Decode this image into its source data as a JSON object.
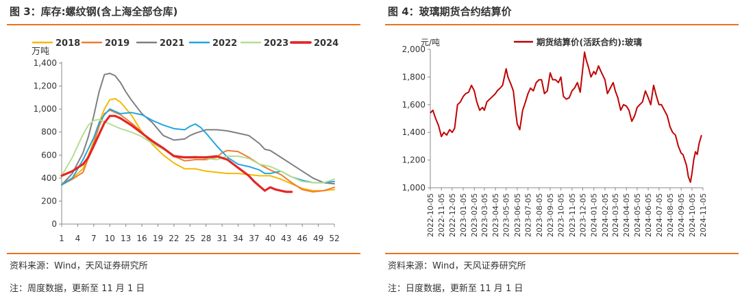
{
  "left": {
    "title": "图 3：库存:螺纹钢(含上海全部仓库)",
    "source": "资料来源：Wind，天风证券研究所",
    "note": "注：周度数据，更新至 11 月 1 日"
  },
  "right": {
    "title": "图 4：玻璃期货合约结算价",
    "source": "资料来源：Wind，天风证券研究所",
    "note": "注：日度数据，更新至 11 月 1 日"
  },
  "chart_data": [
    {
      "type": "line",
      "unit_label": "万吨",
      "ylim": [
        0,
        1400
      ],
      "yticks": [
        0,
        200,
        400,
        600,
        800,
        1000,
        1200,
        1400
      ],
      "xticks": [
        1,
        4,
        7,
        10,
        13,
        16,
        19,
        22,
        25,
        28,
        31,
        34,
        37,
        40,
        43,
        46,
        49,
        52
      ],
      "xlim": [
        1,
        52
      ],
      "legend_position": "top",
      "series": [
        {
          "name": "2018",
          "color": "#f5b800",
          "width": 2,
          "x": [
            1,
            3,
            5,
            7,
            8,
            9,
            10,
            11,
            12,
            14,
            16,
            18,
            20,
            22,
            24,
            26,
            28,
            30,
            32,
            34,
            36,
            38,
            40,
            42,
            44,
            46,
            48,
            50,
            52
          ],
          "y": [
            350,
            400,
            480,
            720,
            880,
            1000,
            1080,
            1090,
            1060,
            950,
            800,
            690,
            600,
            530,
            480,
            480,
            460,
            450,
            440,
            440,
            430,
            420,
            420,
            390,
            350,
            310,
            290,
            290,
            300
          ]
        },
        {
          "name": "2019",
          "color": "#ed7d31",
          "width": 2,
          "x": [
            1,
            3,
            5,
            7,
            8,
            9,
            10,
            12,
            14,
            16,
            18,
            20,
            22,
            24,
            26,
            28,
            30,
            31,
            32,
            34,
            36,
            38,
            40,
            42,
            44,
            46,
            48,
            50,
            52
          ],
          "y": [
            340,
            390,
            450,
            700,
            850,
            960,
            990,
            950,
            880,
            800,
            700,
            660,
            590,
            550,
            560,
            560,
            580,
            620,
            640,
            630,
            580,
            520,
            470,
            430,
            360,
            300,
            280,
            290,
            320
          ]
        },
        {
          "name": "2021",
          "color": "#7f7f7f",
          "width": 2,
          "x": [
            1,
            3,
            5,
            6,
            7,
            8,
            9,
            10,
            11,
            12,
            13,
            14,
            16,
            18,
            20,
            22,
            24,
            25,
            26,
            28,
            30,
            32,
            34,
            36,
            38,
            39,
            40,
            42,
            44,
            46,
            48,
            50,
            52
          ],
          "y": [
            340,
            440,
            620,
            760,
            940,
            1150,
            1300,
            1310,
            1290,
            1230,
            1150,
            1080,
            960,
            880,
            770,
            730,
            740,
            770,
            790,
            820,
            820,
            810,
            790,
            770,
            700,
            650,
            640,
            580,
            520,
            460,
            400,
            360,
            350
          ]
        },
        {
          "name": "2022",
          "color": "#1fa6e0",
          "width": 2,
          "x": [
            1,
            3,
            5,
            7,
            8,
            9,
            10,
            11,
            12,
            14,
            16,
            18,
            20,
            22,
            24,
            25,
            26,
            27,
            28,
            30,
            32,
            34,
            36,
            38,
            39,
            40,
            42,
            44,
            46,
            48,
            50,
            52
          ],
          "y": [
            340,
            400,
            560,
            750,
            880,
            950,
            1000,
            980,
            960,
            970,
            950,
            900,
            860,
            830,
            820,
            850,
            870,
            840,
            790,
            680,
            580,
            520,
            500,
            470,
            440,
            440,
            460,
            410,
            380,
            360,
            360,
            370
          ]
        },
        {
          "name": "2023",
          "color": "#b6dd91",
          "width": 2,
          "x": [
            1,
            3,
            5,
            6,
            7,
            8,
            9,
            10,
            12,
            14,
            16,
            18,
            20,
            22,
            24,
            26,
            28,
            30,
            32,
            34,
            36,
            38,
            40,
            42,
            44,
            46,
            48,
            50,
            52
          ],
          "y": [
            420,
            580,
            780,
            860,
            900,
            910,
            890,
            870,
            830,
            800,
            760,
            700,
            650,
            600,
            580,
            590,
            570,
            560,
            590,
            590,
            570,
            520,
            500,
            460,
            410,
            370,
            360,
            360,
            390
          ]
        },
        {
          "name": "2024",
          "color": "#e32626",
          "width": 3.2,
          "x": [
            1,
            3,
            5,
            6,
            7,
            8,
            9,
            10,
            11,
            12,
            14,
            16,
            18,
            20,
            22,
            24,
            26,
            28,
            30,
            32,
            34,
            36,
            37,
            38,
            39,
            40,
            41,
            42,
            43,
            44
          ],
          "y": [
            420,
            460,
            520,
            580,
            680,
            780,
            880,
            940,
            940,
            920,
            860,
            790,
            720,
            660,
            590,
            580,
            580,
            580,
            590,
            560,
            490,
            420,
            370,
            330,
            290,
            320,
            300,
            290,
            280,
            280
          ]
        }
      ]
    },
    {
      "type": "line",
      "unit_label": "元/吨",
      "ylim": [
        1000,
        2000
      ],
      "yticks": [
        1000,
        1200,
        1400,
        1600,
        1800,
        2000
      ],
      "xticks": [
        "2022-10-05",
        "2022-11-05",
        "2022-12-05",
        "2023-01-05",
        "2023-02-05",
        "2023-03-05",
        "2023-04-05",
        "2023-05-05",
        "2023-06-05",
        "2023-07-05",
        "2023-08-05",
        "2023-09-05",
        "2023-10-05",
        "2023-11-05",
        "2023-12-05",
        "2024-01-05",
        "2024-02-05",
        "2024-03-05",
        "2024-04-05",
        "2024-05-05",
        "2024-06-05",
        "2024-07-05",
        "2024-08-05",
        "2024-09-05",
        "2024-10-05",
        "2024-11-05"
      ],
      "legend_position": "top-right",
      "series": [
        {
          "name": "期货结算价(活跃合约):玻璃",
          "color": "#c00000",
          "width": 2,
          "x": [
            "2022-10-05",
            "2022-10-12",
            "2022-10-20",
            "2022-10-28",
            "2022-11-05",
            "2022-11-12",
            "2022-11-20",
            "2022-11-28",
            "2022-12-05",
            "2022-12-12",
            "2022-12-20",
            "2022-12-28",
            "2023-01-05",
            "2023-01-12",
            "2023-01-20",
            "2023-01-28",
            "2023-02-05",
            "2023-02-12",
            "2023-02-20",
            "2023-02-28",
            "2023-03-05",
            "2023-03-12",
            "2023-03-20",
            "2023-03-28",
            "2023-04-05",
            "2023-04-10",
            "2023-04-18",
            "2023-04-25",
            "2023-05-05",
            "2023-05-10",
            "2023-05-18",
            "2023-05-25",
            "2023-06-01",
            "2023-06-05",
            "2023-06-12",
            "2023-06-20",
            "2023-06-28",
            "2023-07-05",
            "2023-07-12",
            "2023-07-20",
            "2023-07-28",
            "2023-08-05",
            "2023-08-12",
            "2023-08-20",
            "2023-08-28",
            "2023-09-05",
            "2023-09-12",
            "2023-09-20",
            "2023-09-28",
            "2023-10-05",
            "2023-10-12",
            "2023-10-20",
            "2023-10-28",
            "2023-11-05",
            "2023-11-12",
            "2023-11-20",
            "2023-11-28",
            "2023-12-05",
            "2023-12-10",
            "2023-12-15",
            "2023-12-20",
            "2023-12-28",
            "2024-01-05",
            "2024-01-10",
            "2024-01-18",
            "2024-01-25",
            "2024-02-05",
            "2024-02-12",
            "2024-02-20",
            "2024-02-28",
            "2024-03-05",
            "2024-03-12",
            "2024-03-20",
            "2024-03-28",
            "2024-04-05",
            "2024-04-12",
            "2024-04-20",
            "2024-04-28",
            "2024-05-05",
            "2024-05-12",
            "2024-05-20",
            "2024-05-28",
            "2024-06-05",
            "2024-06-12",
            "2024-06-20",
            "2024-06-28",
            "2024-07-05",
            "2024-07-12",
            "2024-07-20",
            "2024-07-28",
            "2024-08-05",
            "2024-08-12",
            "2024-08-20",
            "2024-08-28",
            "2024-09-05",
            "2024-09-10",
            "2024-09-15",
            "2024-09-20",
            "2024-09-25",
            "2024-10-01",
            "2024-10-05",
            "2024-10-10",
            "2024-10-15",
            "2024-10-20",
            "2024-10-25",
            "2024-11-01"
          ],
          "y": [
            1540,
            1560,
            1500,
            1450,
            1370,
            1400,
            1380,
            1420,
            1400,
            1430,
            1600,
            1620,
            1660,
            1680,
            1690,
            1740,
            1700,
            1620,
            1560,
            1580,
            1560,
            1620,
            1640,
            1660,
            1680,
            1700,
            1720,
            1740,
            1860,
            1800,
            1750,
            1700,
            1540,
            1460,
            1420,
            1560,
            1620,
            1680,
            1720,
            1700,
            1760,
            1780,
            1780,
            1680,
            1700,
            1830,
            1780,
            1780,
            1760,
            1800,
            1660,
            1640,
            1650,
            1700,
            1720,
            1760,
            1690,
            1860,
            1980,
            1920,
            1880,
            1800,
            1840,
            1820,
            1880,
            1840,
            1780,
            1680,
            1720,
            1760,
            1700,
            1650,
            1560,
            1600,
            1590,
            1560,
            1480,
            1520,
            1580,
            1600,
            1620,
            1700,
            1650,
            1600,
            1740,
            1660,
            1600,
            1600,
            1560,
            1520,
            1440,
            1400,
            1380,
            1300,
            1250,
            1240,
            1200,
            1160,
            1080,
            1040,
            1100,
            1200,
            1260,
            1240,
            1320,
            1380
          ]
        }
      ]
    }
  ]
}
